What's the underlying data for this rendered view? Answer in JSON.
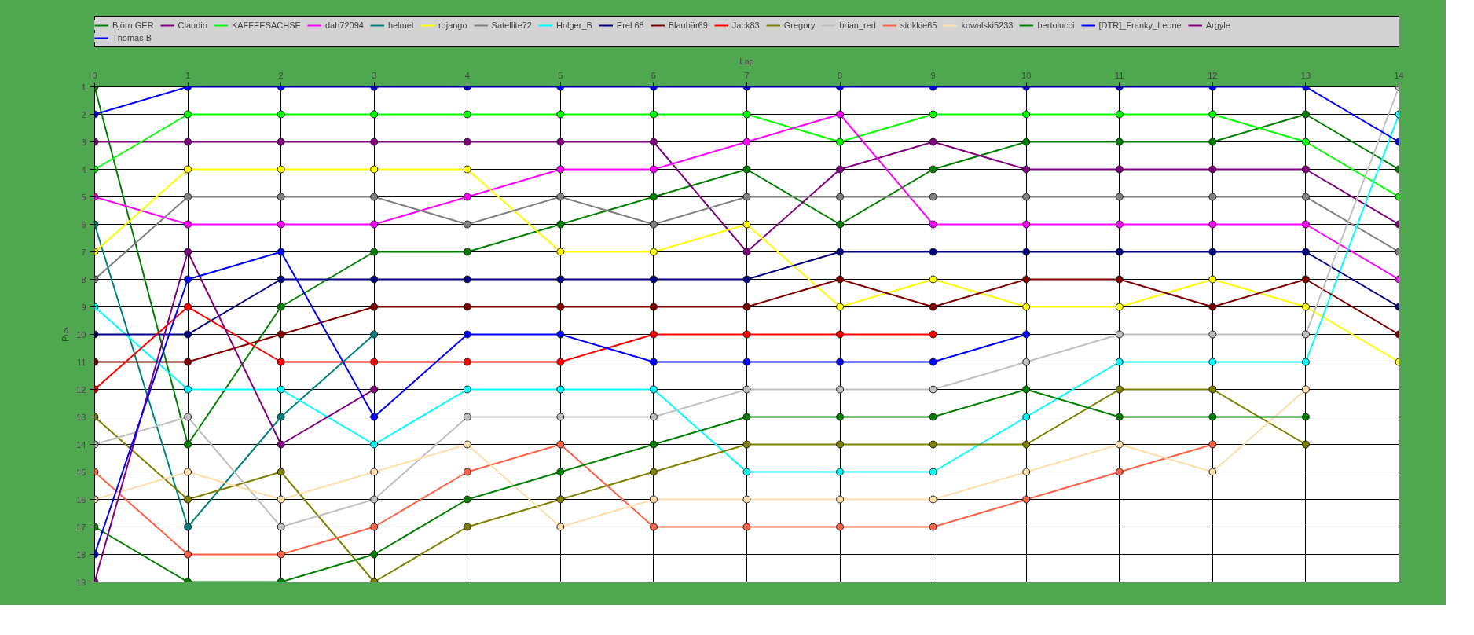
{
  "chart_data": {
    "type": "line",
    "xlabel": "Lap",
    "ylabel": "Pos",
    "x": [
      0,
      1,
      2,
      3,
      4,
      5,
      6,
      7,
      8,
      9,
      10,
      11,
      12,
      13,
      14
    ],
    "xlim": [
      0,
      14
    ],
    "xticks": [
      0,
      1,
      2,
      3,
      4,
      5,
      6,
      7,
      8,
      9,
      10,
      11,
      12,
      13,
      14
    ],
    "ylim": [
      19,
      1
    ],
    "yticks": [
      1,
      2,
      3,
      4,
      5,
      6,
      7,
      8,
      9,
      10,
      11,
      12,
      13,
      14,
      15,
      16,
      17,
      18,
      19
    ],
    "grid": true,
    "legend": "top",
    "marker": "circle",
    "line_style": "solid",
    "series": [
      {
        "name": "Björn GER",
        "color": "#008000",
        "values": [
          1,
          14,
          9,
          7,
          7,
          6,
          5,
          4,
          6,
          4,
          3,
          3,
          3,
          2,
          4
        ]
      },
      {
        "name": "Claudio",
        "color": "#800080",
        "values": [
          3,
          3,
          3,
          3,
          3,
          3,
          3,
          7,
          4,
          3,
          4,
          4,
          4,
          4,
          6
        ]
      },
      {
        "name": "KAFFEESACHSE",
        "color": "#00ff00",
        "values": [
          4,
          2,
          2,
          2,
          2,
          2,
          2,
          2,
          3,
          2,
          2,
          2,
          2,
          3,
          5
        ]
      },
      {
        "name": "dah72094",
        "color": "#ff00ff",
        "values": [
          5,
          6,
          6,
          6,
          5,
          4,
          4,
          3,
          2,
          6,
          6,
          6,
          6,
          6,
          8
        ]
      },
      {
        "name": "helmet",
        "color": "#008080",
        "values": [
          6,
          17,
          13,
          10,
          null,
          null,
          null,
          null,
          null,
          null,
          null,
          null,
          null,
          null,
          null
        ]
      },
      {
        "name": "rdjango",
        "color": "#ffff00",
        "values": [
          7,
          4,
          4,
          4,
          4,
          7,
          7,
          6,
          9,
          8,
          9,
          9,
          8,
          9,
          11
        ]
      },
      {
        "name": "Satellite72",
        "color": "#808080",
        "values": [
          8,
          5,
          5,
          5,
          6,
          5,
          6,
          5,
          5,
          5,
          5,
          5,
          5,
          5,
          7
        ]
      },
      {
        "name": "Holger_B",
        "color": "#00ffff",
        "values": [
          9,
          12,
          12,
          14,
          12,
          12,
          12,
          15,
          15,
          15,
          13,
          11,
          11,
          11,
          2
        ]
      },
      {
        "name": "Erel 68",
        "color": "#000080",
        "values": [
          10,
          10,
          8,
          8,
          8,
          8,
          8,
          8,
          7,
          7,
          7,
          7,
          7,
          7,
          9
        ]
      },
      {
        "name": "Blaubär69",
        "color": "#800000",
        "values": [
          11,
          11,
          10,
          9,
          9,
          9,
          9,
          9,
          8,
          9,
          8,
          8,
          9,
          8,
          10
        ]
      },
      {
        "name": "Jack83",
        "color": "#ff0000",
        "values": [
          12,
          9,
          11,
          11,
          11,
          11,
          10,
          10,
          10,
          10,
          null,
          null,
          null,
          null,
          null
        ]
      },
      {
        "name": "Gregory",
        "color": "#808000",
        "values": [
          13,
          16,
          15,
          19,
          17,
          16,
          15,
          14,
          14,
          14,
          14,
          12,
          12,
          14,
          null
        ]
      },
      {
        "name": "brian_red",
        "color": "#c0c0c0",
        "values": [
          14,
          13,
          17,
          16,
          13,
          13,
          13,
          12,
          12,
          12,
          11,
          10,
          10,
          10,
          1
        ]
      },
      {
        "name": "stokkie65",
        "color": "#ff6347",
        "values": [
          15,
          18,
          18,
          17,
          15,
          14,
          17,
          17,
          17,
          17,
          16,
          15,
          14,
          null,
          null
        ]
      },
      {
        "name": "kowalski5233",
        "color": "#ffdead",
        "values": [
          16,
          15,
          16,
          15,
          14,
          17,
          16,
          16,
          16,
          16,
          15,
          14,
          15,
          12,
          null
        ]
      },
      {
        "name": "bertolucci",
        "color": "#008000",
        "values": [
          17,
          19,
          19,
          18,
          16,
          15,
          14,
          13,
          13,
          13,
          12,
          13,
          13,
          13,
          null
        ]
      },
      {
        "name": "[DTR]_Franky_Leone",
        "color": "#0000ff",
        "values": [
          2,
          1,
          1,
          1,
          1,
          1,
          1,
          1,
          1,
          1,
          1,
          1,
          1,
          1,
          3
        ]
      },
      {
        "name": "Argyle",
        "color": "#800080",
        "values": [
          19,
          7,
          14,
          12,
          null,
          null,
          null,
          null,
          null,
          null,
          null,
          null,
          null,
          null,
          null
        ]
      },
      {
        "name": "Thomas B",
        "color": "#0000ff",
        "values": [
          18,
          8,
          7,
          13,
          10,
          10,
          11,
          11,
          11,
          11,
          10,
          null,
          null,
          null,
          null
        ]
      }
    ]
  }
}
